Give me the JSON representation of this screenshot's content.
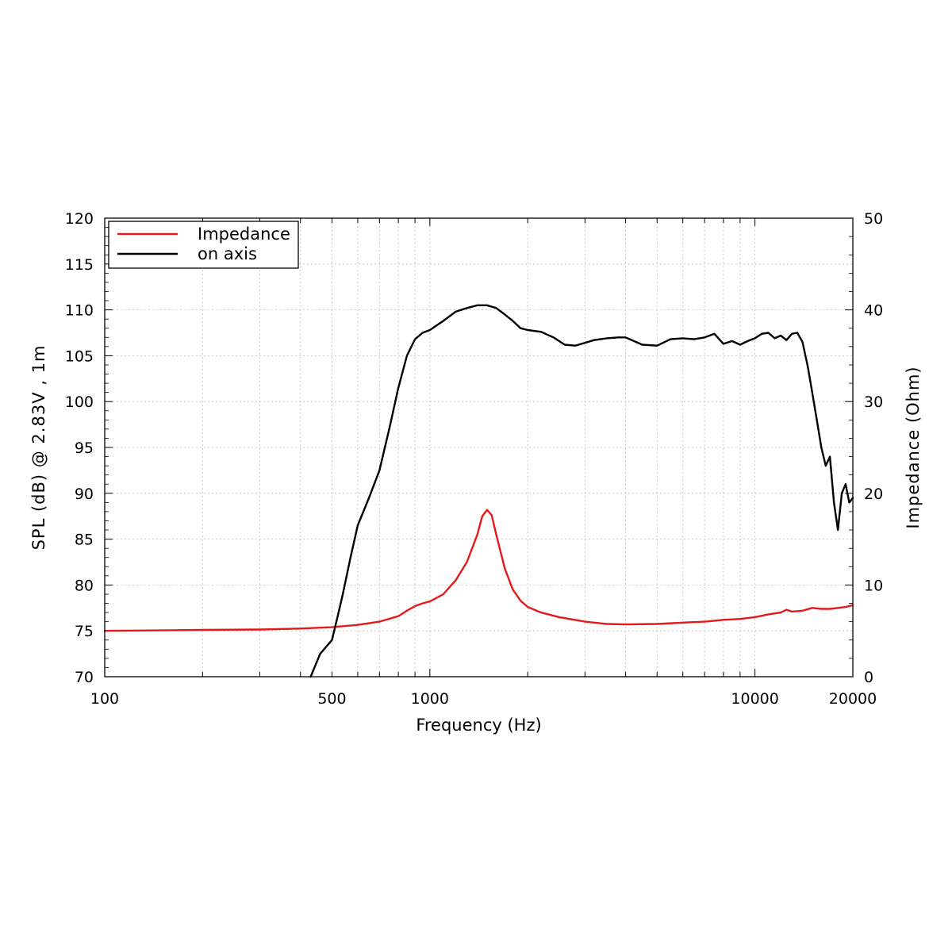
{
  "chart_data": {
    "type": "line",
    "xlabel": "Frequency (Hz)",
    "ylabel": "SPL (dB) @ 2.83V , 1m",
    "y2label": "Impedance (Ohm)",
    "xscale": "log",
    "xlim": [
      100,
      20000
    ],
    "ylim": [
      70,
      120
    ],
    "y2lim": [
      0,
      50
    ],
    "grid": true,
    "legend_position": "top-left",
    "xticks": [
      100,
      500,
      1000,
      10000,
      20000
    ],
    "xtick_labels": [
      "100",
      "500",
      "1000",
      "10000",
      "20000"
    ],
    "yticks": [
      70,
      75,
      80,
      85,
      90,
      95,
      100,
      105,
      110,
      115,
      120
    ],
    "ytick_labels": [
      "70",
      "75",
      "80",
      "85",
      "90",
      "95",
      "100",
      "105",
      "110",
      "115",
      "120"
    ],
    "y2ticks": [
      0,
      10,
      20,
      30,
      40,
      50
    ],
    "y2tick_labels": [
      "0",
      "10",
      "20",
      "30",
      "40",
      "50"
    ],
    "series": [
      {
        "name": "Impedance",
        "axis": "right",
        "color": "#e31a1c",
        "x": [
          100,
          150,
          200,
          300,
          400,
          500,
          600,
          700,
          800,
          850,
          900,
          950,
          1000,
          1100,
          1200,
          1300,
          1400,
          1450,
          1500,
          1550,
          1600,
          1700,
          1800,
          1900,
          2000,
          2200,
          2500,
          3000,
          3500,
          4000,
          5000,
          6000,
          7000,
          8000,
          9000,
          10000,
          11000,
          12000,
          12500,
          13000,
          14000,
          15000,
          16000,
          17000,
          18000,
          19000,
          20000
        ],
        "y": [
          5.0,
          5.05,
          5.1,
          5.15,
          5.25,
          5.4,
          5.65,
          6.0,
          6.6,
          7.2,
          7.7,
          8.0,
          8.2,
          9.0,
          10.5,
          12.5,
          15.5,
          17.5,
          18.2,
          17.6,
          15.5,
          11.8,
          9.5,
          8.3,
          7.6,
          7.0,
          6.5,
          6.0,
          5.75,
          5.7,
          5.75,
          5.9,
          6.0,
          6.2,
          6.3,
          6.5,
          6.8,
          7.0,
          7.3,
          7.1,
          7.2,
          7.5,
          7.4,
          7.4,
          7.5,
          7.6,
          7.8
        ]
      },
      {
        "name": "on axis",
        "axis": "left",
        "color": "#000000",
        "x": [
          430,
          460,
          500,
          520,
          540,
          570,
          600,
          650,
          700,
          750,
          800,
          850,
          900,
          950,
          1000,
          1100,
          1200,
          1300,
          1400,
          1500,
          1600,
          1700,
          1800,
          1900,
          2000,
          2200,
          2400,
          2600,
          2800,
          3000,
          3200,
          3500,
          3800,
          4000,
          4500,
          5000,
          5500,
          6000,
          6500,
          7000,
          7500,
          8000,
          8500,
          9000,
          9500,
          10000,
          10500,
          11000,
          11500,
          12000,
          12500,
          13000,
          13500,
          14000,
          14500,
          15000,
          15500,
          16000,
          16500,
          17000,
          17500,
          18000,
          18500,
          19000,
          19500,
          20000
        ],
        "y": [
          70.0,
          72.5,
          74.0,
          76.5,
          79.0,
          83.0,
          86.5,
          89.5,
          92.5,
          97.0,
          101.5,
          105.0,
          106.8,
          107.5,
          107.8,
          108.8,
          109.8,
          110.2,
          110.5,
          110.5,
          110.2,
          109.5,
          108.8,
          108.0,
          107.8,
          107.6,
          107.0,
          106.2,
          106.1,
          106.4,
          106.7,
          106.9,
          107.0,
          107.0,
          106.2,
          106.1,
          106.8,
          106.9,
          106.8,
          107.0,
          107.4,
          106.3,
          106.6,
          106.2,
          106.6,
          106.9,
          107.4,
          107.5,
          106.9,
          107.2,
          106.7,
          107.4,
          107.5,
          106.5,
          104.0,
          101.0,
          98.0,
          95.0,
          93.0,
          94.0,
          89.0,
          86.0,
          90.0,
          91.0,
          89.0,
          89.5
        ]
      }
    ]
  }
}
